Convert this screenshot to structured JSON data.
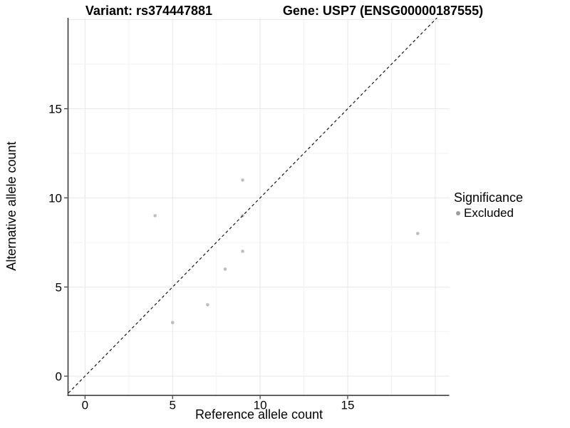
{
  "chart_data": {
    "type": "scatter",
    "titles": {
      "left": "Variant: rs374447881",
      "right": "Gene: USP7 (ENSG00000187555)"
    },
    "xlabel": "Reference allele count",
    "ylabel": "Alternative allele count",
    "xlim": [
      -0.95,
      20.8
    ],
    "ylim": [
      -1.05,
      20.1
    ],
    "x_ticks": [
      0,
      5,
      10,
      15
    ],
    "y_ticks": [
      0,
      5,
      10,
      15
    ],
    "grid": true,
    "minor_grid_step": 2.5,
    "grid_max": 20,
    "identity_line": {
      "style": "dashed",
      "equation": "y = x",
      "color": "#141414"
    },
    "series": [
      {
        "name": "Excluded",
        "color": "#bdbdbd",
        "points": [
          [
            4,
            9
          ],
          [
            5,
            3
          ],
          [
            7,
            4
          ],
          [
            8,
            6
          ],
          [
            9,
            7
          ],
          [
            9,
            9
          ],
          [
            9,
            11
          ],
          [
            19,
            8
          ]
        ]
      }
    ],
    "legend": {
      "title": "Significance",
      "entries": [
        "Excluded"
      ],
      "position": "right"
    },
    "colors": {
      "background": "#ffffff",
      "grid_major": "#e7e7e7",
      "grid_minor": "#f3f3f3",
      "axis_line": "#3c3c3c",
      "tick": "#333333",
      "text": "#000000",
      "legend_marker": "#9e9e9e"
    }
  }
}
